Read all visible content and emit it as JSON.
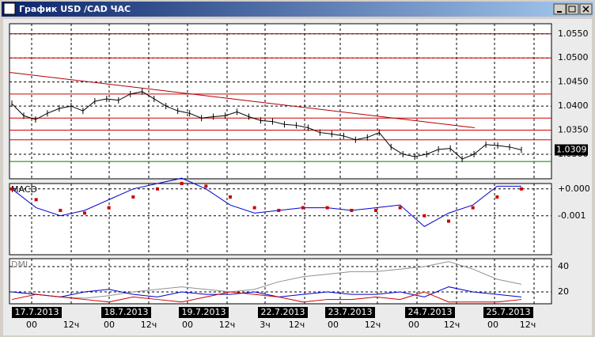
{
  "window_title": "График USD /CAD ЧАС",
  "chart_data": [
    {
      "type": "line",
      "name": "price",
      "color": "#000000",
      "values": [
        1.0405,
        1.038,
        1.0372,
        1.0385,
        1.0395,
        1.04,
        1.039,
        1.041,
        1.0415,
        1.0412,
        1.0425,
        1.043,
        1.0415,
        1.04,
        1.039,
        1.0385,
        1.0375,
        1.0378,
        1.038,
        1.0388,
        1.0378,
        1.037,
        1.0368,
        1.0362,
        1.036,
        1.0355,
        1.0345,
        1.0342,
        1.0338,
        1.033,
        1.0335,
        1.0345,
        1.0315,
        1.03,
        1.0295,
        1.03,
        1.031,
        1.0312,
        1.029,
        1.03,
        1.032,
        1.0318,
        1.0315,
        1.0309
      ],
      "ylim": [
        1.0249,
        1.0571
      ],
      "yticks": [
        {
          "value": 1.055,
          "label": "1.0550"
        },
        {
          "value": 1.05,
          "label": "1.0500"
        },
        {
          "value": 1.045,
          "label": "1.0450"
        },
        {
          "value": 1.04,
          "label": "1.0400"
        },
        {
          "value": 1.035,
          "label": "1.0350"
        },
        {
          "value": 1.03,
          "label": "1.0300"
        }
      ],
      "last": 1.0309,
      "hlines": [
        {
          "value": 1.055,
          "color": "#800000"
        },
        {
          "value": 1.05,
          "color": "#cc0000"
        },
        {
          "value": 1.0425,
          "color": "#cc0000"
        },
        {
          "value": 1.0375,
          "color": "#cc0000"
        },
        {
          "value": 1.035,
          "color": "#cc0000"
        },
        {
          "value": 1.033,
          "color": "#cc0000"
        },
        {
          "value": 1.0285,
          "color": "#008000"
        }
      ],
      "trendline": {
        "color": "#b00000",
        "from": 1.047,
        "to": 1.0355
      }
    },
    {
      "type": "line",
      "title": "MACD",
      "series": [
        {
          "color": "#0000cc",
          "values": [
            0.0,
            -0.0007,
            -0.001,
            -0.0008,
            -0.0004,
            0.0,
            0.0002,
            0.0004,
            0.0,
            -0.0006,
            -0.0009,
            -0.0008,
            -0.0007,
            -0.0007,
            -0.0008,
            -0.0007,
            -0.0006,
            -0.0014,
            -0.0009,
            -0.0006,
            0.0001,
            0.0001
          ]
        },
        {
          "color": "#cc0000",
          "dots": true,
          "values": [
            0.0,
            -0.0004,
            -0.0008,
            -0.0009,
            -0.0007,
            -0.0003,
            0.0,
            0.0002,
            0.0001,
            -0.0003,
            -0.0007,
            -0.0008,
            -0.0007,
            -0.0007,
            -0.0008,
            -0.0008,
            -0.0007,
            -0.001,
            -0.0012,
            -0.0007,
            -0.0003,
            0.0
          ]
        }
      ],
      "ylim": [
        -0.00245,
        0.0002
      ],
      "yticks": [
        {
          "value": 0,
          "label": "+0.000"
        },
        {
          "value": -0.001,
          "label": "-0.001"
        }
      ]
    },
    {
      "type": "line",
      "title": "DMI",
      "series": [
        {
          "color": "#909090",
          "values": [
            20,
            18,
            16,
            15,
            17,
            20,
            22,
            24,
            22,
            20,
            22,
            28,
            32,
            34,
            36,
            36,
            38,
            40,
            44,
            38,
            30,
            26
          ]
        },
        {
          "color": "#0000cc",
          "values": [
            20,
            18,
            16,
            20,
            22,
            18,
            16,
            20,
            18,
            18,
            20,
            16,
            18,
            20,
            18,
            18,
            20,
            16,
            24,
            20,
            18,
            16
          ]
        },
        {
          "color": "#cc0000",
          "values": [
            14,
            18,
            16,
            14,
            12,
            16,
            14,
            12,
            16,
            20,
            18,
            16,
            12,
            14,
            14,
            16,
            14,
            20,
            12,
            12,
            12,
            14
          ]
        }
      ],
      "ylim": [
        10.6,
        46.25
      ],
      "yticks": [
        40,
        20
      ]
    }
  ],
  "time_axis": {
    "dates": [
      "17.7.2013",
      "18.7.2013",
      "19.7.2013",
      "22.7.2013",
      "23.7.2013",
      "24.7.2013",
      "25.7.2013"
    ],
    "hours": [
      "00",
      "12ч",
      "00",
      "12ч",
      "00",
      "12ч",
      "3ч",
      "12ч",
      "00",
      "12ч",
      "00",
      "12ч",
      "00",
      "12ч"
    ]
  }
}
